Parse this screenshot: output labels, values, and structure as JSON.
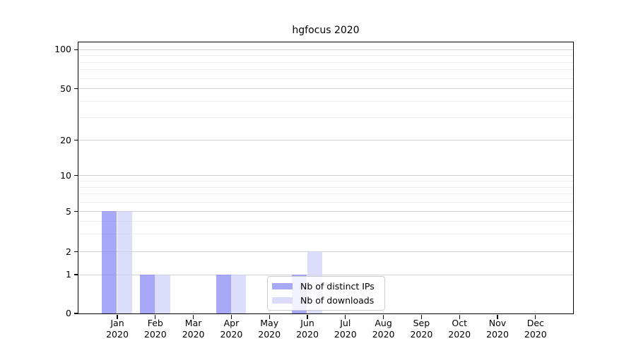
{
  "title": "hgfocus 2020",
  "chart_data": {
    "type": "bar",
    "title": "hgfocus 2020",
    "categories": [
      "Jan",
      "Feb",
      "Mar",
      "Apr",
      "May",
      "Jun",
      "Jul",
      "Aug",
      "Sep",
      "Oct",
      "Nov",
      "Dec"
    ],
    "x_year_label": "2020",
    "series": [
      {
        "name": "Nb of distinct IPs",
        "values": [
          5,
          1,
          0,
          1,
          0,
          1,
          0,
          0,
          0,
          0,
          0,
          0
        ],
        "fill": "rgba(134,134,246,0.72)",
        "legend_color": "#a8a8f8"
      },
      {
        "name": "Nb of downloads",
        "values": [
          5,
          1,
          0,
          1,
          0,
          2,
          0,
          0,
          0,
          0,
          0,
          0
        ],
        "fill": "rgba(206,206,249,0.72)",
        "legend_color": "#dcdcfa"
      }
    ],
    "y_axis": {
      "scale": "symlog",
      "major_ticks": [
        0,
        1,
        2,
        5,
        10,
        20,
        50,
        100
      ],
      "major_tick_labels": [
        "0",
        "1",
        "2",
        "5",
        "10",
        "20",
        "50",
        "100"
      ],
      "minor_gridlines": [
        3,
        4,
        6,
        7,
        8,
        9,
        30,
        40,
        60,
        70,
        80,
        90
      ],
      "ylim": [
        0,
        114
      ]
    },
    "grid": true,
    "legend_position": "lower center",
    "colors": {
      "major_gridline": "#d0d0d0",
      "minor_gridline": "#ededed",
      "axis": "#000000",
      "text": "#000000",
      "legend_border": "#cccccc"
    }
  }
}
